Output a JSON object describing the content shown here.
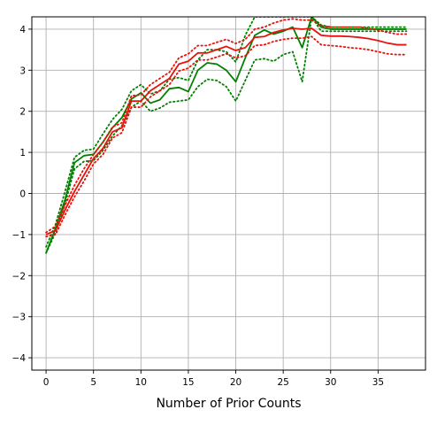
{
  "chart_data": {
    "type": "line",
    "title": "",
    "xlabel": "Number of Prior Counts",
    "ylabel": "",
    "xlim": [
      -1.5,
      40
    ],
    "ylim": [
      -4.3,
      4.3
    ],
    "xticks": [
      0,
      5,
      10,
      15,
      20,
      25,
      30,
      35
    ],
    "yticks": [
      -4,
      -3,
      -2,
      -1,
      0,
      1,
      2,
      3,
      4
    ],
    "grid": true,
    "legend": "none",
    "series": [
      {
        "color": "#008000",
        "style": "solid",
        "points": [
          [
            0,
            -1.45
          ],
          [
            1,
            -0.85
          ],
          [
            2,
            -0.15
          ],
          [
            3,
            0.75
          ],
          [
            4,
            0.92
          ],
          [
            5,
            0.95
          ],
          [
            6,
            1.25
          ],
          [
            7,
            1.6
          ],
          [
            8,
            1.85
          ],
          [
            9,
            2.3
          ],
          [
            10,
            2.45
          ],
          [
            11,
            2.2
          ],
          [
            12,
            2.28
          ],
          [
            13,
            2.55
          ],
          [
            14,
            2.58
          ],
          [
            15,
            2.48
          ],
          [
            16,
            3.0
          ],
          [
            17,
            3.18
          ],
          [
            18,
            3.15
          ],
          [
            19,
            3.0
          ],
          [
            20,
            2.72
          ],
          [
            21,
            3.3
          ],
          [
            22,
            3.85
          ],
          [
            23,
            3.98
          ],
          [
            24,
            3.88
          ],
          [
            25,
            3.95
          ],
          [
            26,
            4.05
          ],
          [
            27,
            3.55
          ],
          [
            28,
            4.3
          ],
          [
            29,
            4.05
          ],
          [
            30,
            4.0
          ],
          [
            31,
            4.0
          ],
          [
            32,
            4.0
          ],
          [
            33,
            4.0
          ],
          [
            34,
            4.0
          ],
          [
            35,
            4.0
          ],
          [
            36,
            4.0
          ],
          [
            37,
            4.0
          ],
          [
            38,
            4.0
          ]
        ]
      },
      {
        "color": "#008000",
        "style": "dotted",
        "points": [
          [
            0,
            -1.3
          ],
          [
            1,
            -0.75
          ],
          [
            2,
            0.05
          ],
          [
            3,
            0.88
          ],
          [
            4,
            1.05
          ],
          [
            5,
            1.08
          ],
          [
            6,
            1.45
          ],
          [
            7,
            1.8
          ],
          [
            8,
            2.05
          ],
          [
            9,
            2.5
          ],
          [
            10,
            2.65
          ],
          [
            11,
            2.42
          ],
          [
            12,
            2.5
          ],
          [
            13,
            2.78
          ],
          [
            14,
            2.82
          ],
          [
            15,
            2.75
          ],
          [
            16,
            3.25
          ],
          [
            17,
            3.5
          ],
          [
            18,
            3.5
          ],
          [
            19,
            3.45
          ],
          [
            20,
            3.2
          ],
          [
            21,
            3.85
          ],
          [
            22,
            4.3
          ],
          [
            23,
            4.3
          ],
          [
            24,
            4.3
          ],
          [
            25,
            4.3
          ],
          [
            26,
            4.3
          ],
          [
            27,
            4.3
          ],
          [
            28,
            4.3
          ],
          [
            29,
            4.1
          ],
          [
            30,
            4.05
          ],
          [
            31,
            4.05
          ],
          [
            32,
            4.05
          ],
          [
            33,
            4.05
          ],
          [
            34,
            4.05
          ],
          [
            35,
            4.05
          ],
          [
            36,
            4.05
          ],
          [
            37,
            4.05
          ],
          [
            38,
            4.05
          ]
        ]
      },
      {
        "color": "#008000",
        "style": "dotted",
        "points": [
          [
            0,
            -1.45
          ],
          [
            1,
            -0.95
          ],
          [
            2,
            -0.25
          ],
          [
            3,
            0.6
          ],
          [
            4,
            0.78
          ],
          [
            5,
            0.8
          ],
          [
            6,
            1.05
          ],
          [
            7,
            1.4
          ],
          [
            8,
            1.65
          ],
          [
            9,
            2.1
          ],
          [
            10,
            2.25
          ],
          [
            11,
            2.0
          ],
          [
            12,
            2.08
          ],
          [
            13,
            2.22
          ],
          [
            14,
            2.25
          ],
          [
            15,
            2.28
          ],
          [
            16,
            2.6
          ],
          [
            17,
            2.78
          ],
          [
            18,
            2.75
          ],
          [
            19,
            2.6
          ],
          [
            20,
            2.25
          ],
          [
            21,
            2.75
          ],
          [
            22,
            3.25
          ],
          [
            23,
            3.28
          ],
          [
            24,
            3.22
          ],
          [
            25,
            3.38
          ],
          [
            26,
            3.45
          ],
          [
            27,
            2.72
          ],
          [
            28,
            4.3
          ],
          [
            29,
            3.95
          ],
          [
            30,
            3.95
          ],
          [
            31,
            3.95
          ],
          [
            32,
            3.95
          ],
          [
            33,
            3.95
          ],
          [
            34,
            3.95
          ],
          [
            35,
            3.95
          ],
          [
            36,
            3.95
          ],
          [
            37,
            3.95
          ],
          [
            38,
            3.95
          ]
        ]
      },
      {
        "color": "#e8120c",
        "style": "solid",
        "points": [
          [
            0,
            -1.0
          ],
          [
            1,
            -0.9
          ],
          [
            2,
            -0.4
          ],
          [
            3,
            0.05
          ],
          [
            4,
            0.45
          ],
          [
            5,
            0.85
          ],
          [
            6,
            1.1
          ],
          [
            7,
            1.5
          ],
          [
            8,
            1.6
          ],
          [
            9,
            2.25
          ],
          [
            10,
            2.25
          ],
          [
            11,
            2.5
          ],
          [
            12,
            2.65
          ],
          [
            13,
            2.8
          ],
          [
            14,
            3.15
          ],
          [
            15,
            3.22
          ],
          [
            16,
            3.42
          ],
          [
            17,
            3.42
          ],
          [
            18,
            3.5
          ],
          [
            19,
            3.58
          ],
          [
            20,
            3.48
          ],
          [
            21,
            3.55
          ],
          [
            22,
            3.8
          ],
          [
            23,
            3.82
          ],
          [
            24,
            3.92
          ],
          [
            25,
            3.98
          ],
          [
            26,
            4.02
          ],
          [
            27,
            4.0
          ],
          [
            28,
            4.02
          ],
          [
            29,
            3.85
          ],
          [
            30,
            3.83
          ],
          [
            31,
            3.83
          ],
          [
            32,
            3.82
          ],
          [
            33,
            3.8
          ],
          [
            34,
            3.77
          ],
          [
            35,
            3.72
          ],
          [
            36,
            3.66
          ],
          [
            37,
            3.62
          ],
          [
            38,
            3.62
          ]
        ]
      },
      {
        "color": "#e8120c",
        "style": "dotted",
        "points": [
          [
            0,
            -0.95
          ],
          [
            1,
            -0.8
          ],
          [
            2,
            -0.28
          ],
          [
            3,
            0.2
          ],
          [
            4,
            0.6
          ],
          [
            5,
            0.95
          ],
          [
            6,
            1.25
          ],
          [
            7,
            1.62
          ],
          [
            8,
            1.72
          ],
          [
            9,
            2.38
          ],
          [
            10,
            2.4
          ],
          [
            11,
            2.65
          ],
          [
            12,
            2.8
          ],
          [
            13,
            2.95
          ],
          [
            14,
            3.3
          ],
          [
            15,
            3.4
          ],
          [
            16,
            3.6
          ],
          [
            17,
            3.6
          ],
          [
            18,
            3.68
          ],
          [
            19,
            3.75
          ],
          [
            20,
            3.65
          ],
          [
            21,
            3.75
          ],
          [
            22,
            4.0
          ],
          [
            23,
            4.05
          ],
          [
            24,
            4.15
          ],
          [
            25,
            4.22
          ],
          [
            26,
            4.25
          ],
          [
            27,
            4.22
          ],
          [
            28,
            4.22
          ],
          [
            29,
            4.08
          ],
          [
            30,
            4.05
          ],
          [
            31,
            4.05
          ],
          [
            32,
            4.05
          ],
          [
            33,
            4.05
          ],
          [
            34,
            4.02
          ],
          [
            35,
            3.98
          ],
          [
            36,
            3.92
          ],
          [
            37,
            3.88
          ],
          [
            38,
            3.88
          ]
        ]
      },
      {
        "color": "#e8120c",
        "style": "dotted",
        "points": [
          [
            0,
            -1.05
          ],
          [
            1,
            -1.0
          ],
          [
            2,
            -0.52
          ],
          [
            3,
            -0.08
          ],
          [
            4,
            0.3
          ],
          [
            5,
            0.72
          ],
          [
            6,
            0.95
          ],
          [
            7,
            1.35
          ],
          [
            8,
            1.48
          ],
          [
            9,
            2.1
          ],
          [
            10,
            2.1
          ],
          [
            11,
            2.35
          ],
          [
            12,
            2.5
          ],
          [
            13,
            2.65
          ],
          [
            14,
            2.98
          ],
          [
            15,
            3.05
          ],
          [
            16,
            3.25
          ],
          [
            17,
            3.25
          ],
          [
            18,
            3.32
          ],
          [
            19,
            3.4
          ],
          [
            20,
            3.3
          ],
          [
            21,
            3.35
          ],
          [
            22,
            3.6
          ],
          [
            23,
            3.62
          ],
          [
            24,
            3.7
          ],
          [
            25,
            3.75
          ],
          [
            26,
            3.78
          ],
          [
            27,
            3.78
          ],
          [
            28,
            3.82
          ],
          [
            29,
            3.62
          ],
          [
            30,
            3.6
          ],
          [
            31,
            3.58
          ],
          [
            32,
            3.55
          ],
          [
            33,
            3.53
          ],
          [
            34,
            3.5
          ],
          [
            35,
            3.45
          ],
          [
            36,
            3.4
          ],
          [
            37,
            3.38
          ],
          [
            38,
            3.38
          ]
        ]
      }
    ]
  }
}
